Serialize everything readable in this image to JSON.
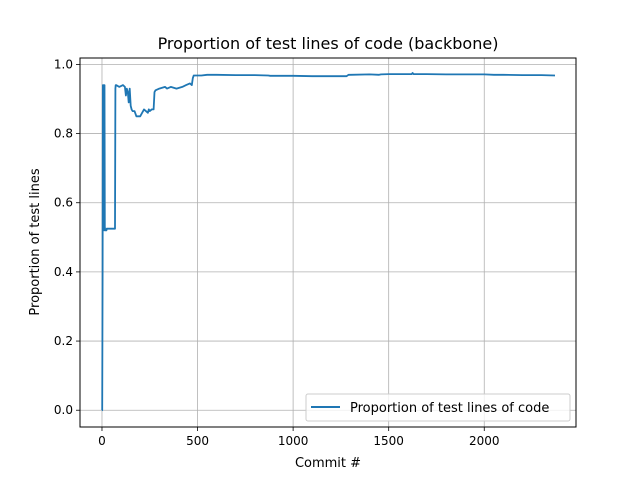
{
  "chart_data": {
    "type": "line",
    "title": "Proportion of test lines of code (backbone)",
    "xlabel": "Commit #",
    "ylabel": "Proportion of test lines",
    "xlim": [
      -115,
      2480
    ],
    "ylim": [
      -0.0485,
      1.0185
    ],
    "xticks": [
      0,
      500,
      1000,
      1500,
      2000
    ],
    "xtick_labels": [
      "0",
      "500",
      "1000",
      "1500",
      "2000"
    ],
    "yticks": [
      0.0,
      0.2,
      0.4,
      0.6,
      0.8,
      1.0
    ],
    "ytick_labels": [
      "0.0",
      "0.2",
      "0.4",
      "0.6",
      "0.8",
      "1.0"
    ],
    "grid": true,
    "legend_position": "lower right",
    "series": [
      {
        "name": "Proportion of test lines of code",
        "color": "#1f77b4",
        "x": [
          0,
          1,
          3,
          5,
          7,
          9,
          11,
          13,
          15,
          17,
          19,
          21,
          23,
          25,
          40,
          60,
          68,
          70,
          72,
          75,
          90,
          110,
          120,
          125,
          130,
          135,
          140,
          145,
          150,
          155,
          160,
          170,
          180,
          195,
          200,
          220,
          240,
          245,
          250,
          260,
          270,
          275,
          280,
          300,
          330,
          340,
          360,
          390,
          420,
          440,
          460,
          470,
          475,
          480,
          500,
          520,
          550,
          600,
          700,
          800,
          870,
          880,
          900,
          1000,
          1100,
          1200,
          1280,
          1290,
          1300,
          1400,
          1450,
          1460,
          1500,
          1600,
          1620,
          1625,
          1630,
          1700,
          1800,
          1900,
          2000,
          2050,
          2100,
          2200,
          2300,
          2370
        ],
        "y": [
          0.0,
          0.0,
          0.4,
          0.94,
          0.6,
          0.94,
          0.52,
          0.94,
          0.53,
          0.52,
          0.52,
          0.52,
          0.52,
          0.525,
          0.525,
          0.525,
          0.525,
          0.93,
          0.94,
          0.94,
          0.935,
          0.94,
          0.935,
          0.91,
          0.93,
          0.92,
          0.89,
          0.93,
          0.88,
          0.87,
          0.865,
          0.865,
          0.85,
          0.85,
          0.85,
          0.87,
          0.86,
          0.87,
          0.865,
          0.87,
          0.87,
          0.92,
          0.925,
          0.93,
          0.935,
          0.93,
          0.935,
          0.93,
          0.935,
          0.94,
          0.945,
          0.94,
          0.96,
          0.968,
          0.968,
          0.968,
          0.97,
          0.97,
          0.969,
          0.969,
          0.968,
          0.967,
          0.967,
          0.967,
          0.966,
          0.966,
          0.966,
          0.97,
          0.97,
          0.971,
          0.97,
          0.971,
          0.972,
          0.972,
          0.972,
          0.975,
          0.972,
          0.972,
          0.971,
          0.971,
          0.971,
          0.97,
          0.97,
          0.969,
          0.969,
          0.968
        ]
      }
    ]
  }
}
